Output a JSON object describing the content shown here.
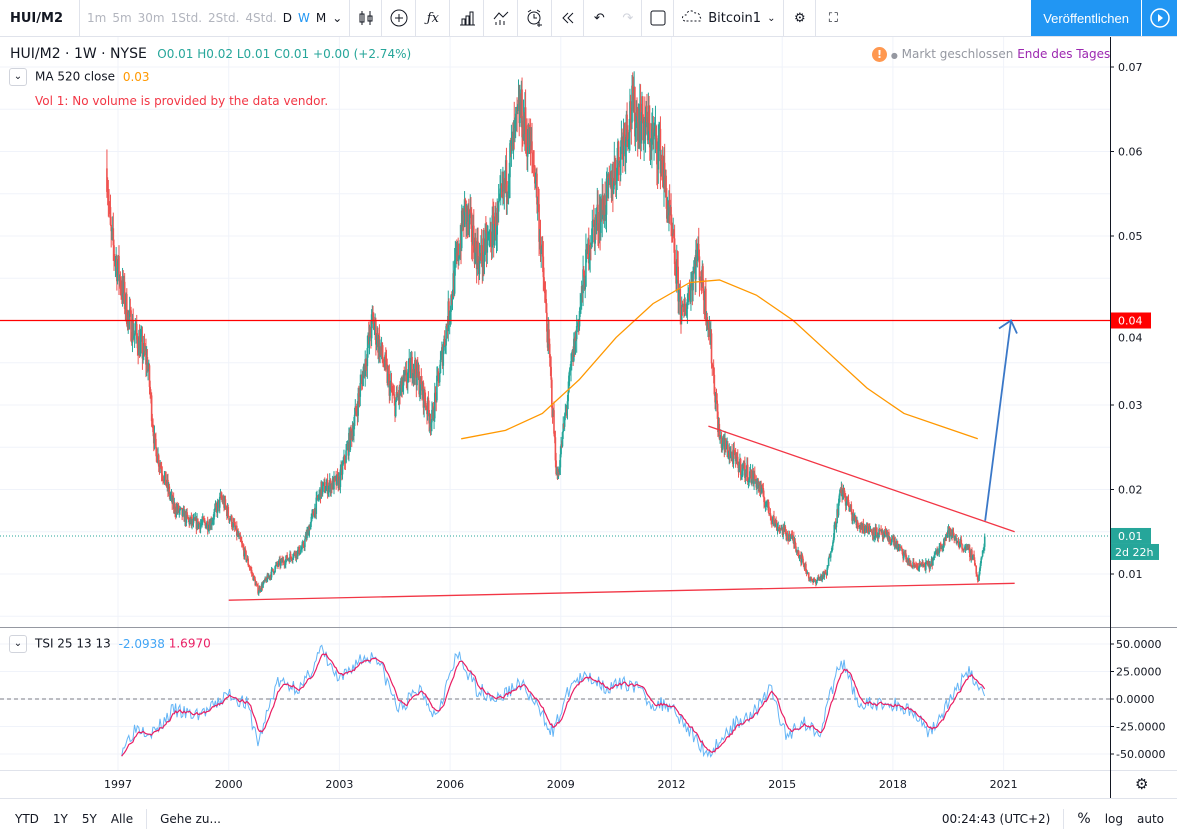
{
  "toolbar": {
    "symbol": "HUI/M2",
    "intervals": [
      "1m",
      "5m",
      "30m",
      "1Std.",
      "2Std.",
      "4Std.",
      "D",
      "W",
      "M"
    ],
    "layout_name": "Bitcoin1",
    "publish": "Veröffentlichen"
  },
  "legend": {
    "title": "HUI/M2 · 1W · NYSE",
    "open": "O0.01",
    "high": "H0.02",
    "low": "L0.01",
    "close": "C0.01",
    "change": "+0.00 (+2.74%)",
    "ma_label": "MA 520 close",
    "ma_value": "0.03",
    "vol_msg": "Vol 1: No volume is provided by the data vendor.",
    "market_status": "Markt geschlossen",
    "session": "Ende des Tages"
  },
  "tsi_legend": {
    "label": "TSI 25 13 13",
    "v1": "-2.0938",
    "v2": "1.6970"
  },
  "price_axis": {
    "ticks": [
      "0.07",
      "0.06",
      "0.05",
      "0.04",
      "0.03",
      "0.02",
      "0.01"
    ],
    "hline_label": "0.04",
    "last_label": "0.01",
    "countdown": "2d 22h"
  },
  "tsi_axis": {
    "ticks": [
      "50.0000",
      "25.0000",
      "0.0000",
      "-25.0000",
      "-50.0000"
    ]
  },
  "time_axis": {
    "ticks": [
      "1997",
      "2000",
      "2003",
      "2006",
      "2009",
      "2012",
      "2015",
      "2018",
      "2021"
    ]
  },
  "bottom": {
    "ranges": [
      "YTD",
      "1Y",
      "5Y",
      "Alle"
    ],
    "goto": "Gehe zu...",
    "clock": "00:24:43 (UTC+2)",
    "percent": "%",
    "log": "log",
    "auto": "auto"
  },
  "colors": {
    "up": "#26a69a",
    "down": "#ef5350",
    "ma": "#ff9800",
    "accent": "#2196f3",
    "hline": "#ff0000",
    "tsi": "#64b5f6",
    "tsi_signal": "#e91e63"
  },
  "chart_data": {
    "type": "candlestick",
    "price_path": [
      [
        1996.7,
        0.058
      ],
      [
        1996.8,
        0.05
      ],
      [
        1997.3,
        0.04
      ],
      [
        1997.8,
        0.035
      ],
      [
        1998.0,
        0.025
      ],
      [
        1998.5,
        0.018
      ],
      [
        1999.0,
        0.016
      ],
      [
        1999.5,
        0.016
      ],
      [
        1999.8,
        0.019
      ],
      [
        2000.3,
        0.014
      ],
      [
        2000.8,
        0.008
      ],
      [
        2001.3,
        0.011
      ],
      [
        2002.0,
        0.013
      ],
      [
        2002.5,
        0.02
      ],
      [
        2003.0,
        0.021
      ],
      [
        2003.4,
        0.028
      ],
      [
        2003.9,
        0.04
      ],
      [
        2004.5,
        0.03
      ],
      [
        2005.0,
        0.035
      ],
      [
        2005.5,
        0.028
      ],
      [
        2006.0,
        0.042
      ],
      [
        2006.4,
        0.053
      ],
      [
        2006.8,
        0.047
      ],
      [
        2007.3,
        0.052
      ],
      [
        2007.9,
        0.065
      ],
      [
        2008.3,
        0.058
      ],
      [
        2008.7,
        0.035
      ],
      [
        2008.9,
        0.021
      ],
      [
        2009.3,
        0.035
      ],
      [
        2009.8,
        0.05
      ],
      [
        2010.3,
        0.055
      ],
      [
        2010.9,
        0.065
      ],
      [
        2011.3,
        0.063
      ],
      [
        2011.7,
        0.06
      ],
      [
        2012.0,
        0.05
      ],
      [
        2012.3,
        0.04
      ],
      [
        2012.7,
        0.048
      ],
      [
        2013.0,
        0.04
      ],
      [
        2013.3,
        0.026
      ],
      [
        2013.8,
        0.023
      ],
      [
        2014.3,
        0.021
      ],
      [
        2014.8,
        0.016
      ],
      [
        2015.3,
        0.014
      ],
      [
        2015.8,
        0.009
      ],
      [
        2016.2,
        0.01
      ],
      [
        2016.6,
        0.02
      ],
      [
        2017.0,
        0.016
      ],
      [
        2017.5,
        0.015
      ],
      [
        2018.0,
        0.014
      ],
      [
        2018.5,
        0.011
      ],
      [
        2019.0,
        0.011
      ],
      [
        2019.5,
        0.015
      ],
      [
        2020.2,
        0.012
      ],
      [
        2020.3,
        0.009
      ],
      [
        2020.5,
        0.0145
      ]
    ],
    "ma520": [
      [
        2006.3,
        0.026
      ],
      [
        2007.5,
        0.027
      ],
      [
        2008.5,
        0.029
      ],
      [
        2009.5,
        0.033
      ],
      [
        2010.5,
        0.038
      ],
      [
        2011.5,
        0.042
      ],
      [
        2012.5,
        0.0445
      ],
      [
        2013.3,
        0.0448
      ],
      [
        2014.3,
        0.043
      ],
      [
        2015.3,
        0.04
      ],
      [
        2016.3,
        0.036
      ],
      [
        2017.3,
        0.032
      ],
      [
        2018.3,
        0.029
      ],
      [
        2019.3,
        0.0275
      ],
      [
        2020.3,
        0.026
      ]
    ],
    "tsi_path": [
      [
        1997.1,
        -45
      ],
      [
        1997.5,
        -25
      ],
      [
        1998.0,
        -30
      ],
      [
        1998.5,
        -10
      ],
      [
        1999.0,
        -15
      ],
      [
        1999.5,
        -10
      ],
      [
        2000.0,
        5
      ],
      [
        2000.5,
        -5
      ],
      [
        2000.8,
        -40
      ],
      [
        2001.3,
        15
      ],
      [
        2002.0,
        10
      ],
      [
        2002.5,
        45
      ],
      [
        2003.0,
        15
      ],
      [
        2003.5,
        35
      ],
      [
        2004.0,
        40
      ],
      [
        2004.6,
        -10
      ],
      [
        2005.2,
        10
      ],
      [
        2005.6,
        -15
      ],
      [
        2006.2,
        40
      ],
      [
        2006.7,
        10
      ],
      [
        2007.3,
        0
      ],
      [
        2007.9,
        15
      ],
      [
        2008.3,
        -5
      ],
      [
        2008.8,
        -30
      ],
      [
        2009.3,
        15
      ],
      [
        2009.8,
        20
      ],
      [
        2010.3,
        10
      ],
      [
        2010.9,
        15
      ],
      [
        2011.5,
        -5
      ],
      [
        2012.0,
        -5
      ],
      [
        2012.5,
        -30
      ],
      [
        2013.0,
        -50
      ],
      [
        2013.8,
        -20
      ],
      [
        2014.3,
        -10
      ],
      [
        2014.7,
        10
      ],
      [
        2015.1,
        -35
      ],
      [
        2015.5,
        -20
      ],
      [
        2016.0,
        -30
      ],
      [
        2016.6,
        35
      ],
      [
        2017.1,
        -5
      ],
      [
        2017.6,
        -5
      ],
      [
        2018.0,
        -5
      ],
      [
        2018.5,
        -10
      ],
      [
        2019.0,
        -30
      ],
      [
        2019.5,
        -5
      ],
      [
        2020.0,
        25
      ],
      [
        2020.3,
        15
      ],
      [
        2020.5,
        0
      ]
    ],
    "hline": 0.04,
    "trend_lower": [
      [
        2000.0,
        0.0069
      ],
      [
        2021.3,
        0.0089
      ]
    ],
    "trend_upper": [
      [
        2013.0,
        0.0275
      ],
      [
        2021.3,
        0.015
      ]
    ],
    "arrow": [
      [
        2020.5,
        0.0163
      ],
      [
        2021.2,
        0.04
      ]
    ],
    "last_price": 0.0145,
    "ylim": [
      0.0035,
      0.074
    ],
    "tsi_ylim": [
      -65,
      65
    ]
  }
}
